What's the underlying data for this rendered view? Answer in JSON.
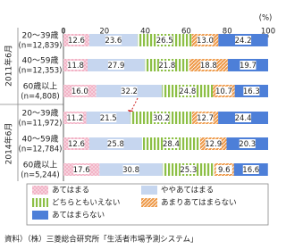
{
  "chart_data": {
    "type": "stacked_hbar",
    "x_unit_label": "(%)",
    "groups": [
      "2011年6月",
      "2014年6月"
    ],
    "categories": [
      "20～39歳",
      "40～59歳",
      "60歳以上",
      "20～39歳",
      "40～59歳",
      "60歳以上"
    ],
    "n_labels": [
      "(n=12,839)",
      "(n=12,353)",
      "(n=4,808)",
      "(n=11,972)",
      "(n=12,784)",
      "(n=5,244)"
    ],
    "series": [
      {
        "name": "あてはまる",
        "color": "#f2b3c6",
        "values": [
          12.6,
          11.8,
          16.0,
          11.2,
          12.6,
          17.6
        ],
        "value_labels": [
          "12.6",
          "11.8",
          "16.0",
          "11.2",
          "12.6",
          "17.6"
        ]
      },
      {
        "name": "ややあてはまる",
        "color": "#c6d6ef",
        "values": [
          23.6,
          27.9,
          32.2,
          21.5,
          25.8,
          30.8
        ],
        "value_labels": [
          "23.6",
          "27.9",
          "32.2",
          "21.5",
          "25.8",
          "30.8"
        ]
      },
      {
        "name": "どちらともいえない",
        "color": "#8cbf45",
        "values": [
          26.5,
          21.8,
          24.8,
          30.2,
          28.4,
          25.3
        ],
        "value_labels": [
          "26.5",
          "21.8",
          "24.8",
          "30.2",
          "28.4",
          "25.3"
        ]
      },
      {
        "name": "あまりあてはまらない",
        "color": "#ee9a4a",
        "values": [
          13.0,
          18.8,
          10.7,
          12.7,
          12.9,
          9.6
        ],
        "value_labels": [
          "13.0",
          "18.8",
          "10.7",
          "12.7",
          "12.9",
          "9.6"
        ]
      },
      {
        "name": "あてはまらない",
        "color": "#4d7fd8",
        "values": [
          24.2,
          19.7,
          16.3,
          24.4,
          20.3,
          16.6
        ],
        "value_labels": [
          "24.2",
          "19.7",
          "16.3",
          "24.4",
          "20.3",
          "16.6"
        ]
      }
    ],
    "xlim": [
      0,
      100
    ],
    "xticks": [
      0,
      20,
      40,
      60,
      80,
      100
    ],
    "source": "資料）（株）三菱総合研究所「生活者市場予測システム」"
  }
}
